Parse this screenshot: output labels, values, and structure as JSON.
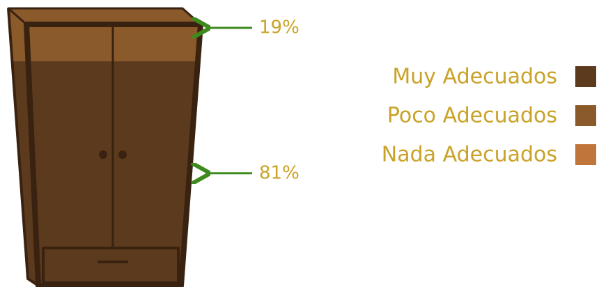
{
  "chart_data": {
    "type": "pictogram",
    "series": [
      {
        "name": "Muy Adecuados",
        "color": "#5c3a1e",
        "values": [
          81
        ],
        "value_labels": [
          "81%"
        ]
      },
      {
        "name": "Poco Adecuados",
        "color": "#8b5a2b",
        "values": [
          19
        ],
        "value_labels": [
          "19%"
        ]
      },
      {
        "name": "Nada Adecuados",
        "color": "#c0753a",
        "values": [
          0
        ]
      }
    ]
  }
}
